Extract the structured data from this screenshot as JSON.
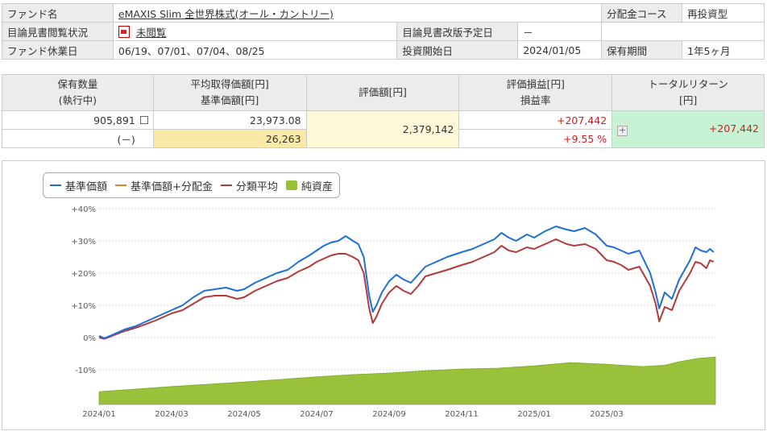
{
  "fund_info": {
    "rows": [
      [
        {
          "label": "ファンド名"
        },
        {
          "value": "eMAXIS Slim 全世界株式(オール・カントリー)",
          "link": true
        },
        {
          "label": "分配金コース"
        },
        {
          "value": "再投資型"
        }
      ],
      [
        {
          "label": "目論見書閲覧状況"
        },
        {
          "value": "未閲覧",
          "link": true,
          "pdf": true
        },
        {
          "label": "目論見書改版予定日"
        },
        {
          "value": "－"
        },
        {
          "label": ""
        },
        {
          "value": ""
        }
      ],
      [
        {
          "label": "ファンド休業日"
        },
        {
          "value": "06/19、07/01、07/04、08/25"
        },
        {
          "label": "投資開始日"
        },
        {
          "value": "2024/01/05"
        },
        {
          "label": "保有期間"
        },
        {
          "value": "1年5ヶ月"
        }
      ]
    ]
  },
  "holdings": {
    "headers": {
      "qty": [
        "保有数量",
        "(執行中)"
      ],
      "cost": [
        "平均取得価額[円]",
        "基準価額[円]"
      ],
      "value": [
        "評価額[円]"
      ],
      "pnl": [
        "評価損益[円]",
        "損益率"
      ],
      "total": [
        "トータルリターン",
        "[円]"
      ]
    },
    "qty": "905,891",
    "pending": "(－)",
    "avg_cost": "23,973.08",
    "nav": "26,263",
    "value": "2,379,142",
    "pnl": "+207,442",
    "pnl_rate": "+9.55 %",
    "total_return": "+207,442",
    "colors": {
      "gain": "#e1161a"
    }
  },
  "chart_data": {
    "type": "line",
    "legend": [
      {
        "name": "基準価額",
        "color": "#1e6fd9",
        "kind": "line"
      },
      {
        "name": "基準価額+分配金",
        "color": "#f07b1a",
        "kind": "line"
      },
      {
        "name": "分類平均",
        "color": "#b43a3a",
        "kind": "line"
      },
      {
        "name": "純資産",
        "color": "#99c23a",
        "kind": "area"
      }
    ],
    "y_ticks": [
      "+40%",
      "+30%",
      "+20%",
      "+10%",
      "0%",
      "-10%"
    ],
    "ylim": [
      -20,
      40
    ],
    "x_ticks": [
      {
        "label": "2024/01",
        "t": 0
      },
      {
        "label": "2024/03",
        "t": 2
      },
      {
        "label": "2024/05",
        "t": 4
      },
      {
        "label": "2024/07",
        "t": 6
      },
      {
        "label": "2024/09",
        "t": 8
      },
      {
        "label": "2024/11",
        "t": 10
      },
      {
        "label": "2025/01",
        "t": 12
      },
      {
        "label": "2025/03",
        "t": 14
      }
    ],
    "x_unit": "months since 2024/01",
    "xlim": [
      0,
      17
    ],
    "series": [
      {
        "name": "基準価額",
        "color": "#1e6fd9",
        "points": [
          [
            0,
            0.5
          ],
          [
            0.15,
            -0.2
          ],
          [
            0.4,
            1
          ],
          [
            0.7,
            2.5
          ],
          [
            1,
            3.5
          ],
          [
            1.3,
            5
          ],
          [
            1.6,
            6.5
          ],
          [
            2,
            8.5
          ],
          [
            2.3,
            10
          ],
          [
            2.6,
            12.5
          ],
          [
            2.9,
            14.5
          ],
          [
            3.2,
            15
          ],
          [
            3.5,
            15.5
          ],
          [
            3.8,
            14.5
          ],
          [
            4,
            15
          ],
          [
            4.3,
            17
          ],
          [
            4.6,
            18.5
          ],
          [
            4.9,
            20
          ],
          [
            5.2,
            21
          ],
          [
            5.5,
            23.5
          ],
          [
            5.8,
            25.5
          ],
          [
            6,
            27
          ],
          [
            6.2,
            28.5
          ],
          [
            6.4,
            29.5
          ],
          [
            6.6,
            30
          ],
          [
            6.8,
            31.5
          ],
          [
            7,
            30
          ],
          [
            7.15,
            29
          ],
          [
            7.3,
            25
          ],
          [
            7.45,
            13
          ],
          [
            7.55,
            8
          ],
          [
            7.65,
            10
          ],
          [
            7.8,
            14
          ],
          [
            8,
            17.5
          ],
          [
            8.2,
            19.5
          ],
          [
            8.4,
            18
          ],
          [
            8.6,
            17
          ],
          [
            8.8,
            19.5
          ],
          [
            9,
            22
          ],
          [
            9.3,
            23.5
          ],
          [
            9.6,
            25
          ],
          [
            10,
            26.5
          ],
          [
            10.3,
            27.5
          ],
          [
            10.6,
            29
          ],
          [
            10.9,
            30.5
          ],
          [
            11.1,
            32.5
          ],
          [
            11.3,
            31
          ],
          [
            11.5,
            30
          ],
          [
            11.8,
            32
          ],
          [
            12,
            31
          ],
          [
            12.3,
            33
          ],
          [
            12.6,
            34.5
          ],
          [
            12.9,
            33.5
          ],
          [
            13.1,
            33
          ],
          [
            13.4,
            34
          ],
          [
            13.7,
            32
          ],
          [
            14,
            28.5
          ],
          [
            14.2,
            28
          ],
          [
            14.4,
            27
          ],
          [
            14.6,
            26
          ],
          [
            14.9,
            27
          ],
          [
            15.2,
            20
          ],
          [
            15.35,
            14
          ],
          [
            15.45,
            9
          ],
          [
            15.6,
            14
          ],
          [
            15.8,
            12
          ],
          [
            16,
            18
          ],
          [
            16.3,
            24
          ],
          [
            16.45,
            28
          ],
          [
            16.6,
            27
          ],
          [
            16.75,
            26.5
          ],
          [
            16.85,
            27.5
          ],
          [
            16.95,
            26.5
          ]
        ]
      },
      {
        "name": "分類平均",
        "color": "#b43a3a",
        "points": [
          [
            0,
            0
          ],
          [
            0.15,
            -0.4
          ],
          [
            0.4,
            0.7
          ],
          [
            0.7,
            2
          ],
          [
            1,
            3
          ],
          [
            1.3,
            4.2
          ],
          [
            1.6,
            5.5
          ],
          [
            2,
            7.5
          ],
          [
            2.3,
            8.5
          ],
          [
            2.6,
            10.5
          ],
          [
            2.9,
            12.5
          ],
          [
            3.2,
            13
          ],
          [
            3.5,
            13
          ],
          [
            3.8,
            12
          ],
          [
            4,
            12.5
          ],
          [
            4.3,
            14.5
          ],
          [
            4.6,
            16
          ],
          [
            4.9,
            17.5
          ],
          [
            5.2,
            18.5
          ],
          [
            5.5,
            20.5
          ],
          [
            5.8,
            22
          ],
          [
            6,
            23.5
          ],
          [
            6.2,
            24.5
          ],
          [
            6.4,
            25.5
          ],
          [
            6.6,
            26
          ],
          [
            6.8,
            26
          ],
          [
            7,
            25
          ],
          [
            7.15,
            24
          ],
          [
            7.3,
            20
          ],
          [
            7.45,
            9
          ],
          [
            7.55,
            4.5
          ],
          [
            7.65,
            6.5
          ],
          [
            7.8,
            10.5
          ],
          [
            8,
            14
          ],
          [
            8.2,
            16
          ],
          [
            8.4,
            14.5
          ],
          [
            8.6,
            13.5
          ],
          [
            8.8,
            16
          ],
          [
            9,
            19
          ],
          [
            9.3,
            20
          ],
          [
            9.6,
            21
          ],
          [
            10,
            22.5
          ],
          [
            10.3,
            23.5
          ],
          [
            10.6,
            25
          ],
          [
            10.9,
            26.5
          ],
          [
            11.1,
            28.5
          ],
          [
            11.3,
            27
          ],
          [
            11.5,
            26.5
          ],
          [
            11.8,
            28
          ],
          [
            12,
            27.5
          ],
          [
            12.3,
            29
          ],
          [
            12.6,
            30.5
          ],
          [
            12.9,
            29
          ],
          [
            13.1,
            28.5
          ],
          [
            13.4,
            29
          ],
          [
            13.7,
            27.5
          ],
          [
            14,
            24
          ],
          [
            14.2,
            23.5
          ],
          [
            14.4,
            22.5
          ],
          [
            14.6,
            21
          ],
          [
            14.9,
            22
          ],
          [
            15.2,
            16
          ],
          [
            15.35,
            10.5
          ],
          [
            15.45,
            5
          ],
          [
            15.6,
            9.5
          ],
          [
            15.8,
            8.5
          ],
          [
            16,
            14.5
          ],
          [
            16.3,
            20
          ],
          [
            16.45,
            23.5
          ],
          [
            16.6,
            23
          ],
          [
            16.75,
            21.5
          ],
          [
            16.85,
            24
          ],
          [
            16.95,
            23.5
          ]
        ]
      }
    ],
    "net_assets_area": {
      "name": "純資産",
      "color": "#99c23a",
      "points": [
        [
          0,
          -16.8
        ],
        [
          1,
          -16
        ],
        [
          2,
          -15.2
        ],
        [
          3,
          -14.5
        ],
        [
          4,
          -13.8
        ],
        [
          5,
          -13
        ],
        [
          6,
          -12.2
        ],
        [
          7,
          -11.5
        ],
        [
          8,
          -11
        ],
        [
          9,
          -10.3
        ],
        [
          10,
          -9.8
        ],
        [
          11,
          -9.5
        ],
        [
          12,
          -8.8
        ],
        [
          13,
          -7.8
        ],
        [
          14,
          -8.3
        ],
        [
          15,
          -9
        ],
        [
          15.6,
          -8.6
        ],
        [
          16,
          -7.5
        ],
        [
          16.5,
          -6.5
        ],
        [
          17,
          -6
        ]
      ]
    }
  }
}
